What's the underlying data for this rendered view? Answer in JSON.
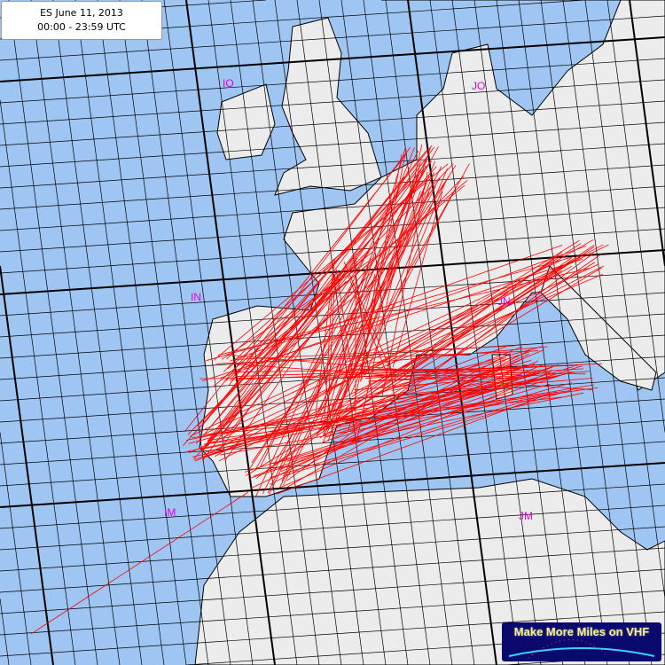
{
  "title": {
    "line1": "ES June 11, 2013",
    "line2": "00:00 - 23:59 UTC"
  },
  "colors": {
    "sea": "#9fc6f2",
    "land": "#ececec",
    "grid": "#000000",
    "paths": "#ff0000",
    "field_labels": "#e000e0"
  },
  "fields": [
    {
      "label": "IO"
    },
    {
      "label": "JO"
    },
    {
      "label": "IN"
    },
    {
      "label": "JN"
    },
    {
      "label": "IM"
    },
    {
      "label": "JM"
    }
  ],
  "logo": {
    "text": "Make More Miles on VHF"
  }
}
